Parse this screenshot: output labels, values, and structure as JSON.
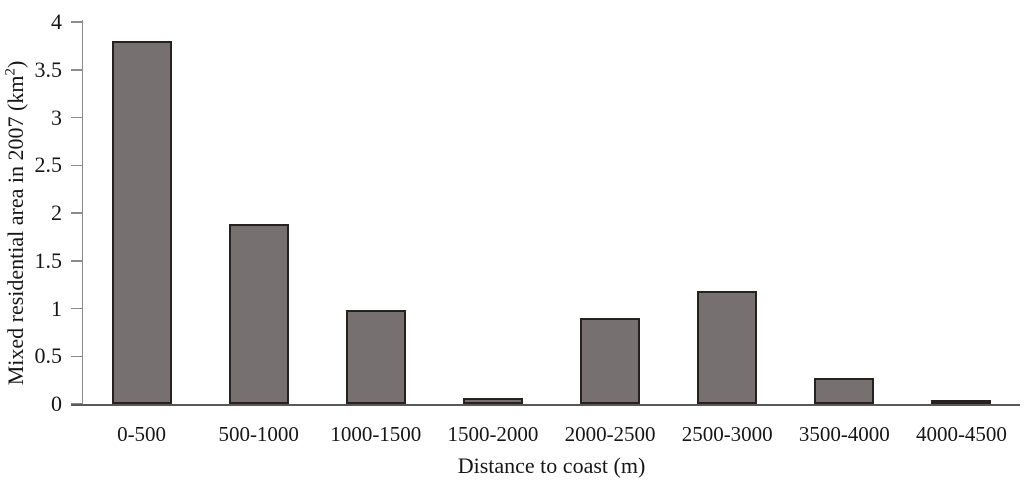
{
  "chart_data": {
    "type": "bar",
    "categories": [
      "0-500",
      "500-1000",
      "1000-1500",
      "1500-2000",
      "2000-2500",
      "2500-3000",
      "3500-4000",
      "4000-4500"
    ],
    "values": [
      3.8,
      1.89,
      0.98,
      0.06,
      0.9,
      1.18,
      0.27,
      0.02
    ],
    "xlabel": "Distance to coast (m)",
    "ylabel": "Mixed residential area in 2007 (km²)",
    "ylim": [
      0,
      4
    ],
    "yticks": [
      0,
      0.5,
      1,
      1.5,
      2,
      2.5,
      3,
      3.5,
      4
    ],
    "grid": false,
    "legend_position": "none",
    "bar_fill": "#767170",
    "bar_border": "#252220",
    "axis_color": "#8c8c8c",
    "baseline_color": "#595959",
    "text_color": "#161616"
  }
}
